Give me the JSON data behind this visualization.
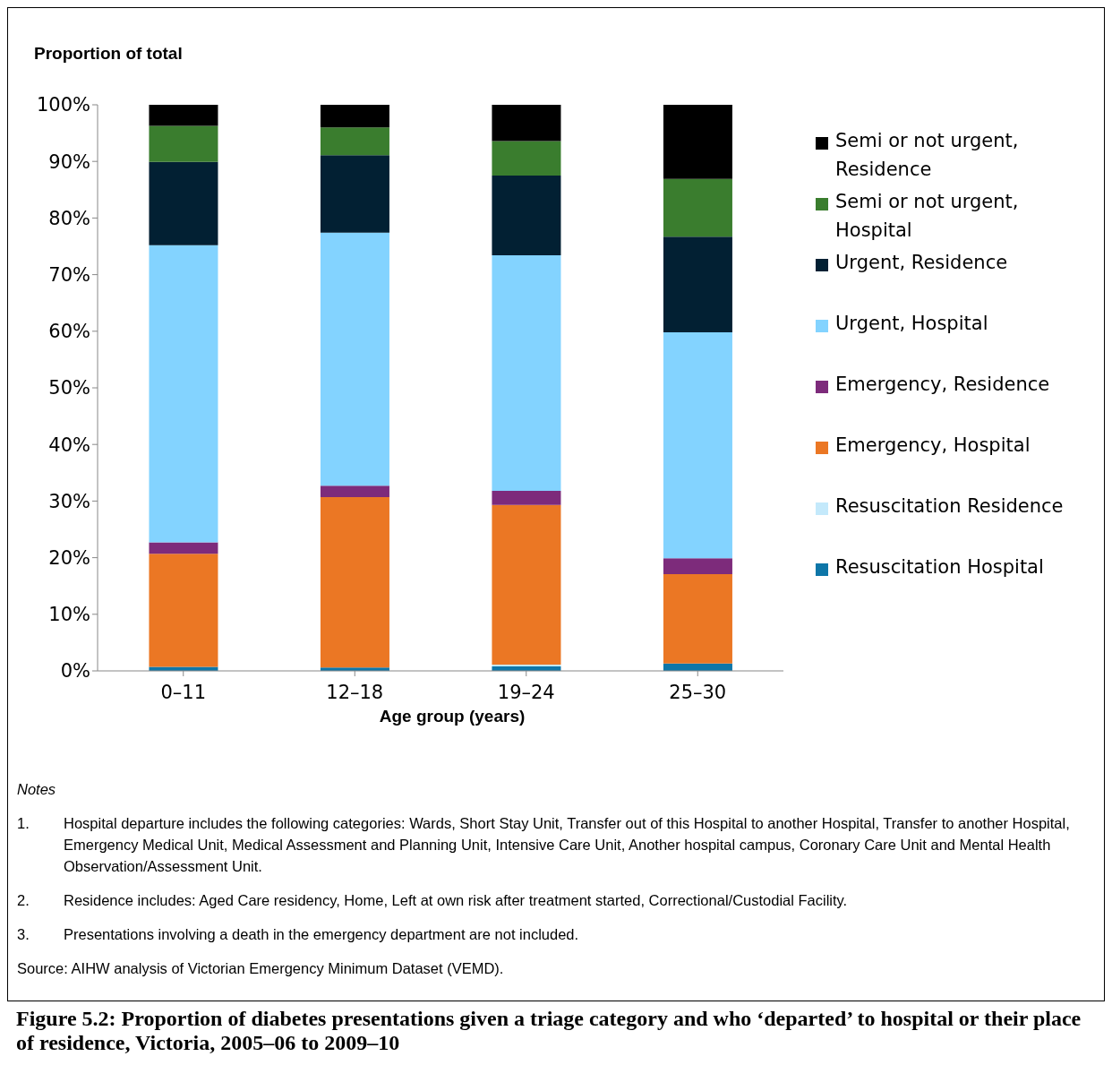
{
  "chart_data": {
    "type": "bar",
    "stacked": true,
    "title": "Figure 5.2: Proportion of diabetes presentations given a triage category and who ‘departed’ to hospital or their place of residence, Victoria, 2005–06 to 2009–10",
    "ylabel": "Proportion of total",
    "xlabel": "Age group (years)",
    "categories": [
      "0–11",
      "12–18",
      "19–24",
      "25–30"
    ],
    "series": [
      {
        "name": "Resuscitation Hospital",
        "color": "#0e76a8",
        "values": [
          0.7,
          0.6,
          0.8,
          1.3
        ]
      },
      {
        "name": "Resuscitation Residence",
        "color": "#c4e9fb",
        "values": [
          0,
          0,
          0.3,
          0
        ]
      },
      {
        "name": "Emergency, Hospital",
        "color": "#eb7724",
        "values": [
          20.0,
          30.1,
          28.2,
          15.8
        ]
      },
      {
        "name": "Emergency, Residence",
        "color": "#7d2b7b",
        "values": [
          2.0,
          2.0,
          2.5,
          2.8
        ]
      },
      {
        "name": "Urgent, Hospital",
        "color": "#83d3ff",
        "values": [
          52.5,
          44.7,
          41.6,
          39.9
        ]
      },
      {
        "name": "Urgent, Residence",
        "color": "#022033",
        "values": [
          14.7,
          13.7,
          14.1,
          16.9
        ]
      },
      {
        "name": "Semi or not urgent, Hospital",
        "color": "#3a7d2e",
        "values": [
          6.4,
          4.9,
          6.1,
          10.2
        ]
      },
      {
        "name": "Semi or not urgent, Residence",
        "color": "#000000",
        "values": [
          3.7,
          4.0,
          6.4,
          13.1
        ]
      }
    ],
    "ylim": [
      0,
      100
    ],
    "yticks": [
      {
        "value": 0,
        "label": "0%"
      },
      {
        "value": 10,
        "label": "10%"
      },
      {
        "value": 20,
        "label": "20%"
      },
      {
        "value": 30,
        "label": "30%"
      },
      {
        "value": 40,
        "label": "40%"
      },
      {
        "value": 50,
        "label": "50%"
      },
      {
        "value": 60,
        "label": "60%"
      },
      {
        "value": 70,
        "label": "70%"
      },
      {
        "value": 80,
        "label": "80%"
      },
      {
        "value": 90,
        "label": "90%"
      },
      {
        "value": 100,
        "label": "100%"
      }
    ],
    "legend": "right",
    "grid": false,
    "annotations": [
      "Notes",
      "1.\tHospital departure includes the following categories: Wards, Short Stay Unit, Transfer out of this Hospital to another Hospital, Transfer to another Hospital, Emergency Medical Unit, Medical Assessment and Planning Unit, Intensive Care Unit, Another hospital campus, Coronary Care Unit and Mental Health Observation/Assessment Unit.",
      "2.\tResidence includes: Aged Care residency, Home, Left at own risk after treatment started, Correctional/Custodial Facility.",
      "3.\tPresentations involving a death in the emergency department are not included.",
      "Source: AIHW analysis of Victorian Emergency Minimum Dataset (VEMD)."
    ]
  }
}
